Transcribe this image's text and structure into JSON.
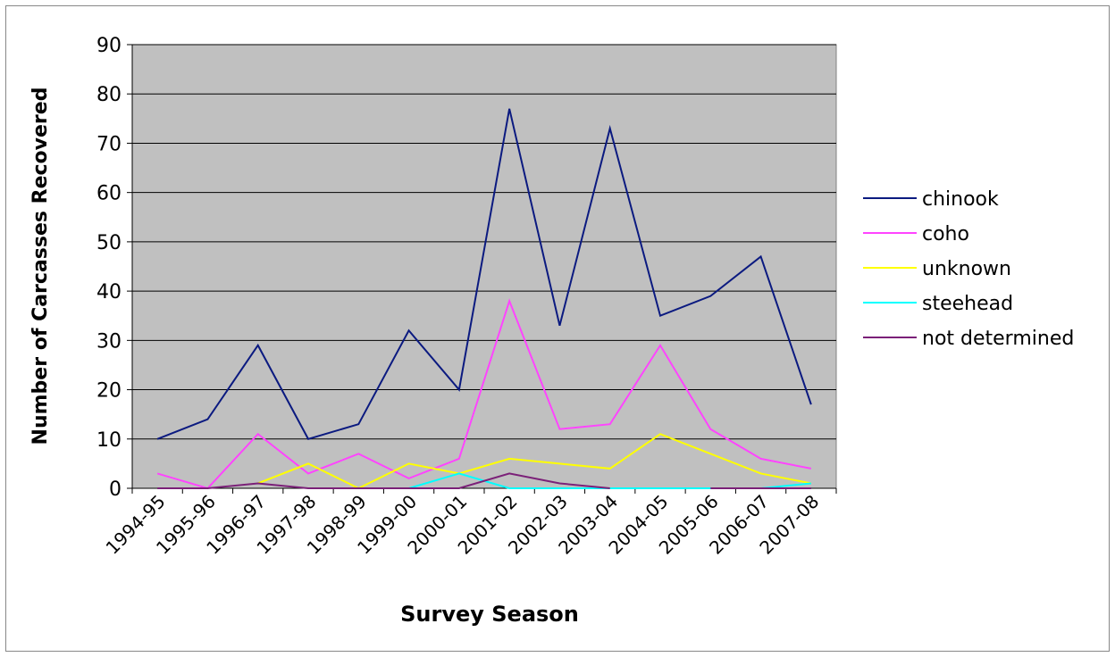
{
  "chart_data": {
    "type": "line",
    "x_label": "Survey Season",
    "y_label": "Number of Carcasses Recovered",
    "categories": [
      "1994-95",
      "1995-96",
      "1996-97",
      "1997-98",
      "1998-99",
      "1999-00",
      "2000-01",
      "2001-02",
      "2002-03",
      "2003-04",
      "2004-05",
      "2005-06",
      "2006-07",
      "2007-08"
    ],
    "series": [
      {
        "name": "chinook",
        "color": "#0b1a80",
        "values": [
          10,
          14,
          29,
          10,
          13,
          32,
          20,
          77,
          33,
          73,
          35,
          39,
          47,
          17
        ]
      },
      {
        "name": "coho",
        "color": "#ff44ff",
        "values": [
          3,
          0,
          11,
          3,
          7,
          2,
          6,
          38,
          12,
          13,
          29,
          12,
          6,
          4
        ]
      },
      {
        "name": "unknown",
        "color": "#ffff00",
        "values": [
          null,
          null,
          1,
          5,
          0,
          5,
          3,
          6,
          5,
          4,
          11,
          7,
          3,
          1
        ]
      },
      {
        "name": "steehead",
        "color": "#00ffff",
        "values": [
          null,
          null,
          null,
          null,
          null,
          0,
          3,
          0,
          0,
          0,
          0,
          0,
          0,
          1
        ]
      },
      {
        "name": "not determined",
        "color": "#7b2078",
        "values": [
          0,
          0,
          1,
          0,
          0,
          0,
          0,
          3,
          1,
          0,
          null,
          0,
          0,
          0
        ]
      }
    ],
    "ylim": [
      0,
      90
    ],
    "yticks": [
      0,
      10,
      20,
      30,
      40,
      50,
      60,
      70,
      80,
      90
    ],
    "grid": true,
    "legend": "right",
    "plot_background": "#c0c0c0"
  }
}
